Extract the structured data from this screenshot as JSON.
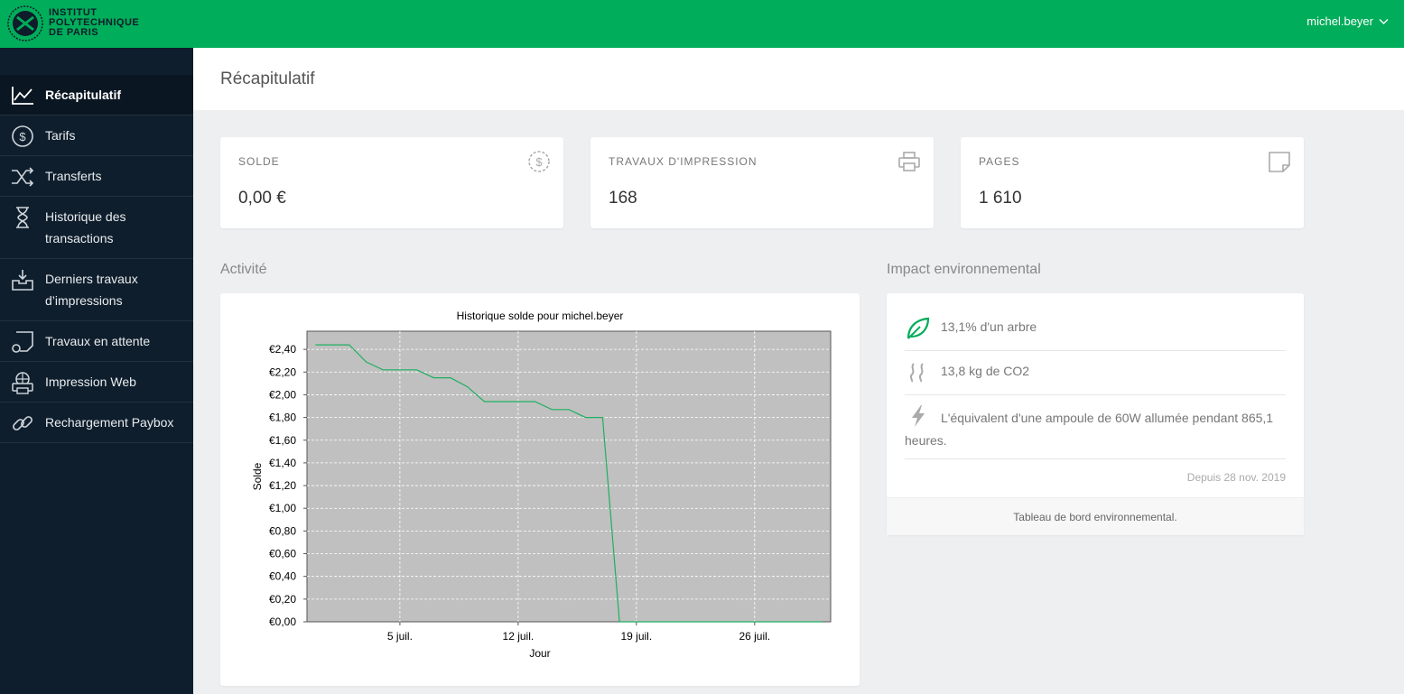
{
  "header": {
    "logo_text_lines": [
      "INSTITUT",
      "POLYTECHNIQUE",
      "DE PARIS"
    ],
    "username": "michel.beyer",
    "brand_color": "#00ad5a"
  },
  "sidebar": {
    "items": [
      {
        "label": "Récapitulatif",
        "icon": "line-chart-icon",
        "active": true
      },
      {
        "label": "Tarifs",
        "icon": "dollar-circle-icon"
      },
      {
        "label": "Transferts",
        "icon": "shuffle-icon"
      },
      {
        "label": "Historique des transactions",
        "icon": "hourglass-icon"
      },
      {
        "label": "Derniers travaux d’impressions",
        "icon": "inbox-tray-icon"
      },
      {
        "label": "Travaux en attente",
        "icon": "pending-document-icon"
      },
      {
        "label": "Impression Web",
        "icon": "web-print-icon"
      },
      {
        "label": "Rechargement Paybox",
        "icon": "link-icon"
      }
    ]
  },
  "page": {
    "title": "Récapitulatif"
  },
  "stats": [
    {
      "label": "SOLDE",
      "value": "0,00 €",
      "icon": "dollar-circle-dashed-icon"
    },
    {
      "label": "TRAVAUX D'IMPRESSION",
      "value": "168",
      "icon": "printer-icon"
    },
    {
      "label": "PAGES",
      "value": "1 610",
      "icon": "page-icon"
    }
  ],
  "activity": {
    "section_title": "Activité"
  },
  "chart_data": {
    "type": "line",
    "title": "Historique solde pour michel.beyer",
    "xlabel": "Jour",
    "ylabel": "Solde",
    "x_tick_labels": [
      {
        "day": 5,
        "label": "5 juil."
      },
      {
        "day": 12,
        "label": "12 juil."
      },
      {
        "day": 19,
        "label": "19 juil."
      },
      {
        "day": 26,
        "label": "26 juil."
      }
    ],
    "y_ticks": [
      0,
      0.2,
      0.4,
      0.6,
      0.8,
      1.0,
      1.2,
      1.4,
      1.6,
      1.8,
      2.0,
      2.2,
      2.4
    ],
    "y_tick_labels": [
      "€0,00",
      "€0,20",
      "€0,40",
      "€0,60",
      "€0,80",
      "€1,00",
      "€1,20",
      "€1,40",
      "€1,60",
      "€1,80",
      "€2,00",
      "€2,20",
      "€2,40"
    ],
    "xlim": [
      -0.5,
      30.5
    ],
    "ylim": [
      0,
      2.56
    ],
    "grid": true,
    "plot_background": "#c0c0c0",
    "line_color": "#1db060",
    "series": [
      {
        "x": [
          0,
          1,
          2,
          3,
          4,
          5,
          6,
          7,
          8,
          9,
          10,
          11,
          12,
          13,
          14,
          15,
          16,
          17,
          18,
          19,
          20,
          21,
          22,
          23,
          24,
          25,
          26,
          27,
          28,
          29,
          30
        ],
        "values": [
          2.44,
          2.44,
          2.44,
          2.29,
          2.22,
          2.22,
          2.22,
          2.15,
          2.15,
          2.07,
          1.94,
          1.94,
          1.94,
          1.94,
          1.87,
          1.87,
          1.8,
          1.8,
          0.0,
          0.0,
          0.0,
          0.0,
          0.0,
          0.0,
          0.0,
          0.0,
          0.0,
          0.0,
          0.0,
          0.0,
          0.0
        ]
      }
    ]
  },
  "environment": {
    "section_title": "Impact environnemental",
    "rows": [
      {
        "text": "13,1% d'un arbre",
        "icon": "leaf-icon"
      },
      {
        "text": "13,8 kg de CO2",
        "icon": "smoke-icon"
      },
      {
        "text": "L'équivalent d'une ampoule de 60W allumée pendant 865,1 heures.",
        "icon": "lightning-icon"
      }
    ],
    "since": "Depuis 28 nov. 2019",
    "footer_link": "Tableau de bord environnemental."
  }
}
